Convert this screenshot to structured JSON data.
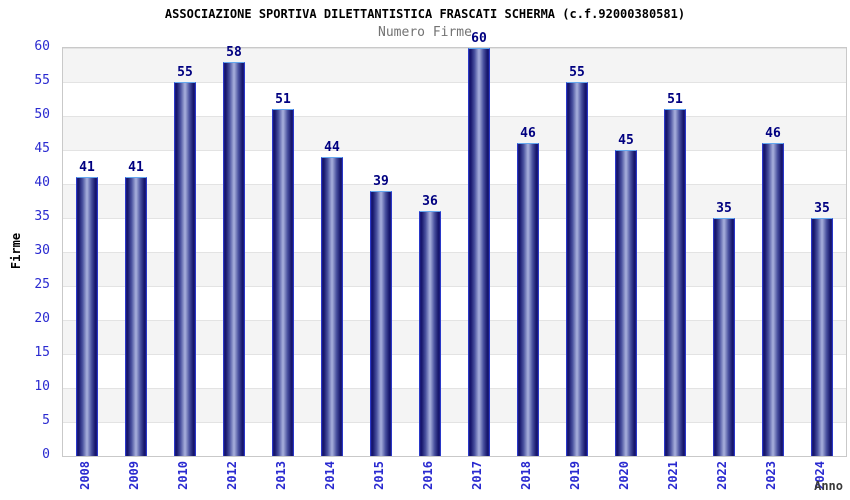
{
  "title": "ASSOCIAZIONE SPORTIVA DILETTANTISTICA FRASCATI SCHERMA (c.f.92000380581)",
  "subtitle": "Numero Firme",
  "colors": {
    "tick_label": "#2a2ad0",
    "value_label": "#000080",
    "bar_dark": "#15156a",
    "bar_light": "#a2aad8",
    "bar_border_top": "#63a7ef",
    "bar_border_side": "#2a38c8",
    "band_gray": "#f4f4f4",
    "band_white": "#ffffff",
    "plot_border": "#c9c9c9",
    "title_color": "#000000",
    "subtitle_color": "#737373"
  },
  "chart_data": {
    "type": "bar",
    "title": "Numero Firme",
    "categories": [
      "2008",
      "2009",
      "2010",
      "2012",
      "2013",
      "2014",
      "2015",
      "2016",
      "2017",
      "2018",
      "2019",
      "2020",
      "2021",
      "2022",
      "2023",
      "2024"
    ],
    "values": [
      41,
      41,
      55,
      58,
      51,
      44,
      39,
      36,
      60,
      46,
      55,
      45,
      51,
      35,
      46,
      35
    ],
    "xlabel": "Anno",
    "ylabel": "Firme",
    "ylim": [
      0,
      60
    ],
    "ytick_step": 5,
    "yticks": [
      0,
      5,
      10,
      15,
      20,
      25,
      30,
      35,
      40,
      45,
      50,
      55,
      60
    ],
    "grid": "horizontal-bands-alternating",
    "legend_position": "none",
    "bar_labels": "above-bars",
    "x_tick_rotation_deg": 90
  }
}
